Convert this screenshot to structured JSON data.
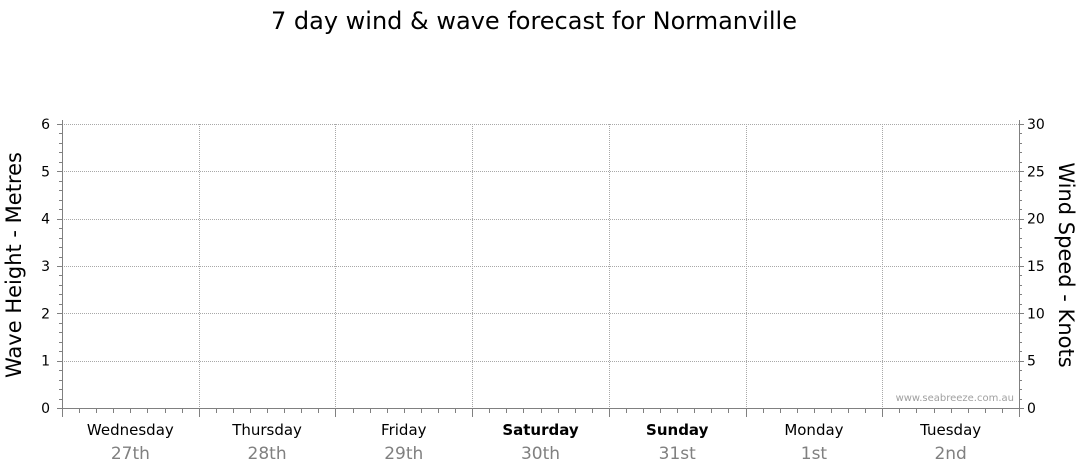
{
  "chart_data": {
    "type": "line",
    "title": "7 day wind & wave forecast for Normanville",
    "ylabel_left": "Wave Height - Metres",
    "ylabel_right": "Wind Speed - Knots",
    "ylim_left": [
      0,
      6
    ],
    "ylim_right": [
      0,
      30
    ],
    "yticks_left": [
      "0",
      "1",
      "2",
      "3",
      "4",
      "5",
      "6"
    ],
    "yticks_right": [
      "0",
      "5",
      "10",
      "15",
      "20",
      "25",
      "30"
    ],
    "days": [
      {
        "name": "Wednesday",
        "date": "27th",
        "weekend": false
      },
      {
        "name": "Thursday",
        "date": "28th",
        "weekend": false
      },
      {
        "name": "Friday",
        "date": "29th",
        "weekend": false
      },
      {
        "name": "Saturday",
        "date": "30th",
        "weekend": true
      },
      {
        "name": "Sunday",
        "date": "31st",
        "weekend": true
      },
      {
        "name": "Monday",
        "date": "1st",
        "weekend": false
      },
      {
        "name": "Tuesday",
        "date": "2nd",
        "weekend": false
      }
    ],
    "series": [],
    "grid": true,
    "watermark": "www.seabreeze.com.au"
  }
}
